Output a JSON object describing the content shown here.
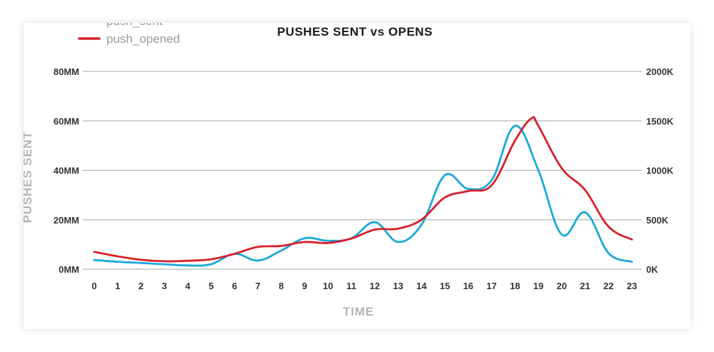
{
  "colors": {
    "push_sent": "#1aa8dc",
    "push_opened": "#d6202a",
    "grid": "#b8b8b8"
  },
  "chart_data": {
    "type": "line",
    "title": "PUSHES SENT vs OPENS",
    "xlabel": "TIME",
    "ylabel": "PUSHES SENT",
    "ylabel_right": "",
    "grid": true,
    "legend_position": "top-left",
    "x": [
      0,
      1,
      2,
      3,
      4,
      5,
      6,
      7,
      8,
      9,
      10,
      11,
      12,
      13,
      14,
      15,
      16,
      17,
      18,
      19,
      20,
      21,
      22,
      23
    ],
    "x_tick_labels": [
      "0",
      "1",
      "2",
      "3",
      "4",
      "5",
      "6",
      "7",
      "8",
      "9",
      "10",
      "11",
      "12",
      "13",
      "14",
      "15",
      "16",
      "17",
      "18",
      "19",
      "20",
      "21",
      "22",
      "23"
    ],
    "ylim": [
      0,
      80
    ],
    "y_tick_labels": [
      "0MM",
      "20MM",
      "40MM",
      "60MM",
      "80MM"
    ],
    "ylim_right": [
      0,
      2000
    ],
    "y_right_tick_labels": [
      "0K",
      "500K",
      "1000K",
      "1500K",
      "2000K"
    ],
    "series": [
      {
        "name": "push_sent",
        "axis": "left",
        "x": [
          0,
          1,
          2,
          3,
          4,
          5,
          6,
          7,
          8,
          9,
          10,
          11,
          12,
          13,
          14,
          15,
          16,
          17,
          18,
          19,
          20,
          21,
          22,
          23
        ],
        "values": [
          3.7,
          3.0,
          2.5,
          2.0,
          1.5,
          2.0,
          6.2,
          3.5,
          7.5,
          12.5,
          11.5,
          12.5,
          19.0,
          11.0,
          18.0,
          38.0,
          32.5,
          36.0,
          58.0,
          40.0,
          14.0,
          23.0,
          6.5,
          3.0
        ]
      },
      {
        "name": "push_opened",
        "axis": "right",
        "x": [
          0,
          1,
          2,
          3,
          4,
          5,
          6,
          7,
          8,
          9,
          10,
          11,
          12,
          13,
          14,
          15,
          16,
          17,
          18,
          18.7,
          19,
          20,
          21,
          22,
          23
        ],
        "values": [
          175,
          130,
          95,
          80,
          85,
          100,
          155,
          225,
          235,
          275,
          265,
          310,
          400,
          410,
          500,
          725,
          790,
          850,
          1300,
          1525,
          1450,
          1020,
          800,
          430,
          300
        ]
      }
    ]
  }
}
